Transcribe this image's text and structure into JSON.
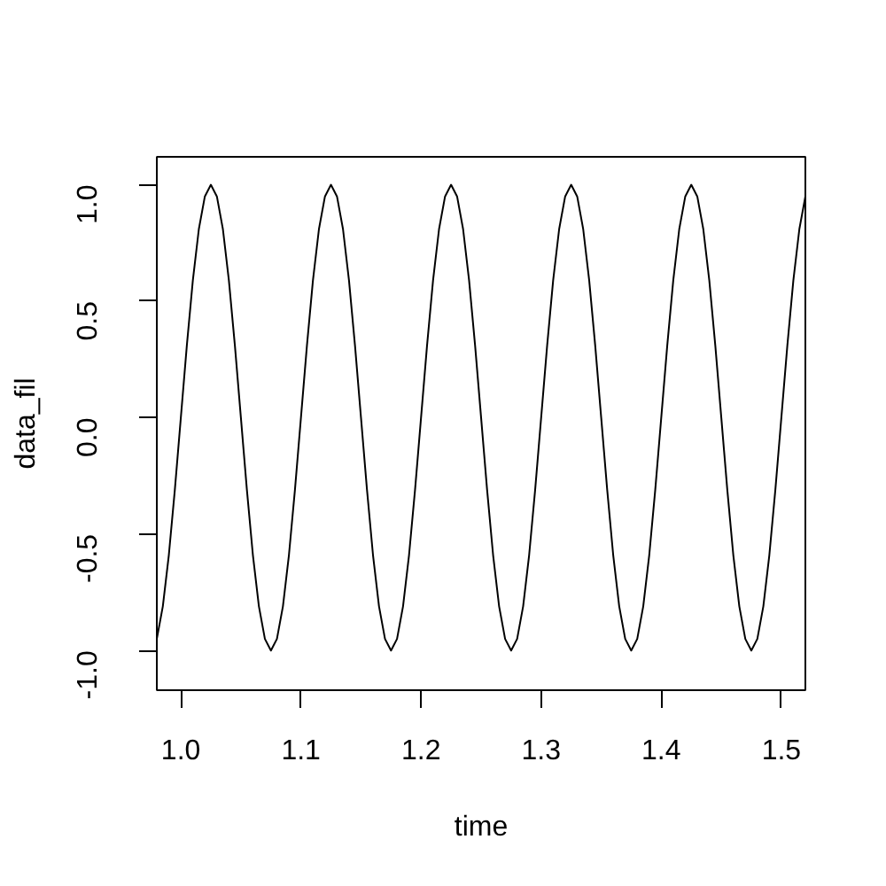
{
  "chart_data": {
    "type": "line",
    "xlabel": "time",
    "ylabel": "data_fil",
    "color": "#000000",
    "xlim": [
      0.98,
      1.52
    ],
    "ylim": [
      -1.17,
      1.12
    ],
    "xticks": [
      {
        "value": 1,
        "label": "1.0"
      },
      1.1,
      1.2,
      1.3,
      1.4,
      1.5
    ],
    "yticks": [
      {
        "value": -1,
        "label": "-1.0"
      },
      -0.5,
      {
        "value": 0,
        "label": "0.0"
      },
      0.5,
      {
        "value": 1,
        "label": "1.0"
      }
    ],
    "x": [
      0.98,
      0.985,
      0.99,
      0.995,
      1.0,
      1.005,
      1.01,
      1.015,
      1.02,
      1.025,
      1.03,
      1.035,
      1.04,
      1.045,
      1.05,
      1.055,
      1.06,
      1.065,
      1.07,
      1.075,
      1.08,
      1.085,
      1.09,
      1.095,
      1.1,
      1.105,
      1.11,
      1.115,
      1.12,
      1.125,
      1.13,
      1.135,
      1.14,
      1.145,
      1.15,
      1.155,
      1.16,
      1.165,
      1.17,
      1.175,
      1.18,
      1.185,
      1.19,
      1.195,
      1.2,
      1.205,
      1.21,
      1.215,
      1.22,
      1.225,
      1.23,
      1.235,
      1.24,
      1.245,
      1.25,
      1.255,
      1.26,
      1.265,
      1.27,
      1.275,
      1.28,
      1.285,
      1.29,
      1.295,
      1.3,
      1.305,
      1.31,
      1.315,
      1.32,
      1.325,
      1.33,
      1.335,
      1.34,
      1.345,
      1.35,
      1.355,
      1.36,
      1.365,
      1.37,
      1.375,
      1.38,
      1.385,
      1.39,
      1.395,
      1.4,
      1.405,
      1.41,
      1.415,
      1.42,
      1.425,
      1.43,
      1.435,
      1.44,
      1.445,
      1.45,
      1.455,
      1.46,
      1.465,
      1.47,
      1.475,
      1.48,
      1.485,
      1.49,
      1.495,
      1.5,
      1.505,
      1.51,
      1.515,
      1.52
    ],
    "values": [
      -0.95,
      -0.81,
      -0.59,
      -0.31,
      0,
      0.31,
      0.59,
      0.81,
      0.95,
      1,
      0.95,
      0.81,
      0.59,
      0.31,
      0,
      -0.31,
      -0.59,
      -0.81,
      -0.95,
      -1,
      -0.95,
      -0.81,
      -0.59,
      -0.31,
      0,
      0.31,
      0.59,
      0.81,
      0.95,
      1,
      0.95,
      0.81,
      0.59,
      0.31,
      0,
      -0.31,
      -0.59,
      -0.81,
      -0.95,
      -1,
      -0.95,
      -0.81,
      -0.59,
      -0.31,
      0,
      0.31,
      0.59,
      0.81,
      0.95,
      1,
      0.95,
      0.81,
      0.59,
      0.31,
      0,
      -0.31,
      -0.59,
      -0.81,
      -0.95,
      -1,
      -0.95,
      -0.81,
      -0.59,
      -0.31,
      0,
      0.31,
      0.59,
      0.81,
      0.95,
      1,
      0.95,
      0.81,
      0.59,
      0.31,
      0,
      -0.31,
      -0.59,
      -0.81,
      -0.95,
      -1,
      -0.95,
      -0.81,
      -0.59,
      -0.31,
      0,
      0.31,
      0.59,
      0.81,
      0.95,
      1,
      0.95,
      0.81,
      0.59,
      0.31,
      0,
      -0.31,
      -0.59,
      -0.81,
      -0.95,
      -1,
      -0.95,
      -0.81,
      -0.59,
      -0.31,
      0,
      0.31,
      0.59,
      0.81,
      0.95
    ]
  }
}
